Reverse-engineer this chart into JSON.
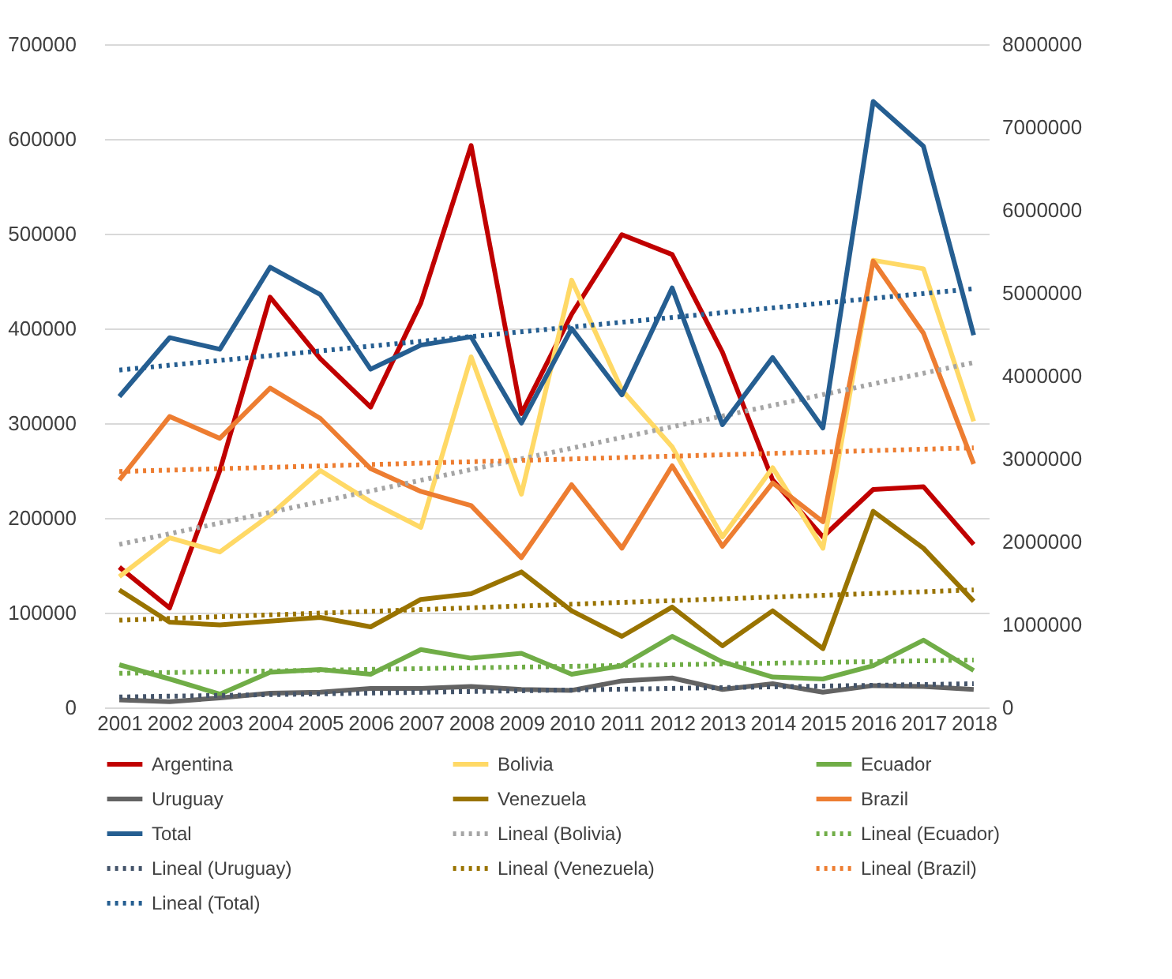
{
  "chart_data": {
    "type": "line",
    "categories": [
      "2001",
      "2002",
      "2003",
      "2004",
      "2005",
      "2006",
      "2007",
      "2008",
      "2009",
      "2010",
      "2011",
      "2012",
      "2013",
      "2014",
      "2015",
      "2016",
      "2017",
      "2018"
    ],
    "ylim": [
      0,
      700000
    ],
    "yticks": [
      0,
      100000,
      200000,
      300000,
      400000,
      500000,
      600000,
      700000
    ],
    "y2lim": [
      0,
      8000000
    ],
    "y2ticks": [
      0,
      1000000,
      2000000,
      3000000,
      4000000,
      5000000,
      6000000,
      7000000,
      8000000
    ],
    "grid": "y",
    "legend": "bottom",
    "line_style": "solid",
    "marker": "none",
    "series": [
      {
        "name": "Argentina",
        "color": "#c00000",
        "values": [
          148000,
          105000,
          250000,
          433000,
          368000,
          317000,
          427000,
          593000,
          310000,
          415000,
          499000,
          478000,
          375000,
          240000,
          180000,
          230000,
          233000,
          172000
        ]
      },
      {
        "name": "Bolivia",
        "color": "#ffd966",
        "values": [
          138000,
          179000,
          164000,
          203000,
          250000,
          217000,
          190000,
          370000,
          225000,
          451000,
          335000,
          275000,
          180000,
          253000,
          168000,
          472000,
          463000,
          302000
        ]
      },
      {
        "name": "Ecuador",
        "color": "#70ad47",
        "values": [
          45000,
          30000,
          14000,
          37000,
          40000,
          35000,
          61000,
          52000,
          57000,
          35000,
          44000,
          75000,
          48000,
          32000,
          30000,
          44000,
          71000,
          39000
        ]
      },
      {
        "name": "Uruguay",
        "color": "#636363",
        "values": [
          8000,
          6000,
          10000,
          15000,
          16000,
          20000,
          20000,
          22000,
          19000,
          18000,
          28000,
          31000,
          19000,
          25000,
          16000,
          23000,
          22000,
          19000
        ]
      },
      {
        "name": "Venezuela",
        "color": "#997300",
        "values": [
          124000,
          90000,
          87000,
          91000,
          95000,
          85000,
          114000,
          120000,
          143000,
          102000,
          75000,
          106000,
          65000,
          102000,
          62000,
          207000,
          168000,
          112000
        ]
      },
      {
        "name": "Brazil",
        "color": "#ed7d31",
        "values": [
          240000,
          307000,
          284000,
          337000,
          305000,
          252000,
          228000,
          213000,
          158000,
          235000,
          168000,
          255000,
          170000,
          237000,
          196000,
          471000,
          395000,
          257000
        ]
      },
      {
        "name": "Total",
        "color": "#255e91",
        "axis": "y2",
        "values": [
          3750000,
          4460000,
          4320000,
          5310000,
          4980000,
          4080000,
          4370000,
          4470000,
          3430000,
          4570000,
          3770000,
          5060000,
          3410000,
          4220000,
          3370000,
          7310000,
          6770000,
          4490000
        ]
      },
      {
        "name": "Lineal (Bolivia)",
        "color": "#a5a5a5",
        "line_style": "dotted",
        "values": [
          172000,
          null,
          null,
          null,
          null,
          null,
          null,
          null,
          null,
          null,
          null,
          null,
          null,
          null,
          null,
          null,
          null,
          364000
        ]
      },
      {
        "name": "Lineal (Ecuador)",
        "color": "#70ad47",
        "line_style": "dotted",
        "values": [
          36000,
          null,
          null,
          null,
          null,
          null,
          null,
          null,
          null,
          null,
          null,
          null,
          null,
          null,
          null,
          null,
          null,
          50000
        ]
      },
      {
        "name": "Lineal (Uruguay)",
        "color": "#44546a",
        "line_style": "dotted",
        "values": [
          11000,
          null,
          null,
          null,
          null,
          null,
          null,
          null,
          null,
          null,
          null,
          null,
          null,
          null,
          null,
          null,
          null,
          25000
        ]
      },
      {
        "name": "Lineal (Venezuela)",
        "color": "#997300",
        "line_style": "dotted",
        "values": [
          92000,
          null,
          null,
          null,
          null,
          null,
          null,
          null,
          null,
          null,
          null,
          null,
          null,
          null,
          null,
          null,
          null,
          124000
        ]
      },
      {
        "name": "Lineal (Brazil)",
        "color": "#ed7d31",
        "line_style": "dotted",
        "values": [
          249000,
          null,
          null,
          null,
          null,
          null,
          null,
          null,
          null,
          null,
          null,
          null,
          null,
          null,
          null,
          null,
          null,
          274000
        ]
      },
      {
        "name": "Lineal (Total)",
        "color": "#255e91",
        "line_style": "dotted",
        "axis": "y2",
        "values": [
          4070000,
          null,
          null,
          null,
          null,
          null,
          null,
          null,
          null,
          null,
          null,
          null,
          null,
          null,
          null,
          null,
          null,
          5050000
        ]
      }
    ]
  }
}
